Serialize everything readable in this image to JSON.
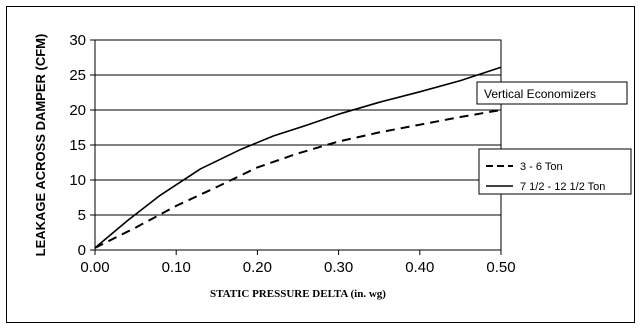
{
  "chart_data": {
    "type": "line",
    "title": "Vertical Economizers",
    "xlabel": "STATIC PRESSURE DELTA (in. wg)",
    "ylabel": "LEAKAGE  ACROSS DAMPER (CFM)",
    "xlim": [
      0,
      0.5
    ],
    "ylim": [
      0,
      30
    ],
    "x_ticks": [
      0.0,
      0.1,
      0.2,
      0.3,
      0.4,
      0.5
    ],
    "x_tick_labels": [
      "0.00",
      "0.10",
      "0.20",
      "0.30",
      "0.40",
      "0.50"
    ],
    "y_ticks": [
      0,
      5,
      10,
      15,
      20,
      25,
      30
    ],
    "y_tick_labels": [
      "0",
      "5",
      "10",
      "15",
      "20",
      "25",
      "30"
    ],
    "grid": "horizontal",
    "legend_position": "right",
    "series": [
      {
        "name": "3 - 6 Ton",
        "style": "dashed",
        "color": "#000000",
        "x": [
          0.0,
          0.05,
          0.1,
          0.15,
          0.2,
          0.25,
          0.3,
          0.35,
          0.4,
          0.45,
          0.5
        ],
        "y": [
          0.3,
          3.2,
          6.3,
          9.0,
          11.8,
          13.8,
          15.5,
          16.8,
          17.9,
          19.0,
          20.0
        ]
      },
      {
        "name": "7 1/2 - 12 1/2 Ton",
        "style": "solid",
        "color": "#000000",
        "x": [
          0.0,
          0.04,
          0.08,
          0.13,
          0.18,
          0.22,
          0.26,
          0.3,
          0.35,
          0.4,
          0.45,
          0.5
        ],
        "y": [
          0.3,
          4.2,
          7.8,
          11.6,
          14.4,
          16.3,
          17.8,
          19.4,
          21.1,
          22.6,
          24.2,
          26.1
        ]
      }
    ]
  }
}
